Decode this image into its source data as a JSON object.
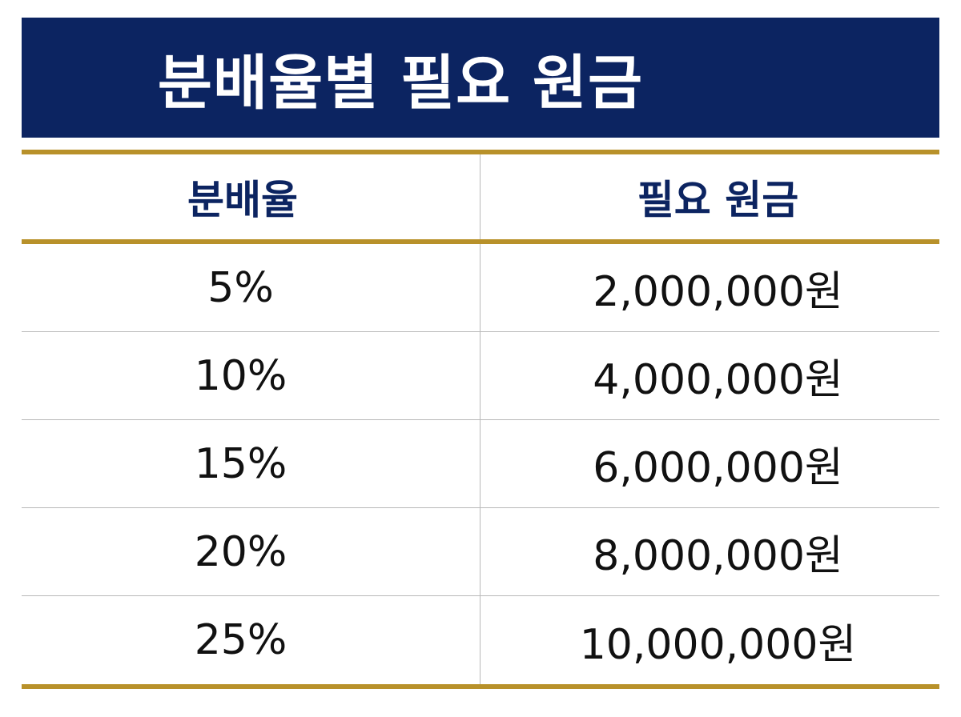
{
  "title": "분배율별 필요 원금",
  "colors": {
    "title_bg": "#0c2461",
    "header_text": "#0c2461",
    "accent_line": "#b8912a"
  },
  "table": {
    "headers": [
      "분배율",
      "필요 원금"
    ],
    "rows": [
      {
        "rate": "5%",
        "principal": "2,000,000원"
      },
      {
        "rate": "10%",
        "principal": "4,000,000원"
      },
      {
        "rate": "15%",
        "principal": "6,000,000원"
      },
      {
        "rate": "20%",
        "principal": "8,000,000원"
      },
      {
        "rate": "25%",
        "principal": "10,000,000원"
      }
    ]
  }
}
